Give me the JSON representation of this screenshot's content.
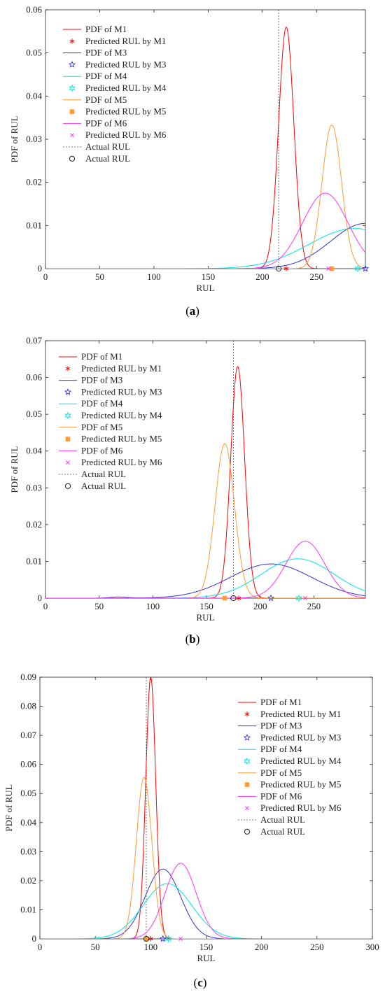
{
  "chart_data": [
    {
      "type": "line",
      "panel_label": "(a)",
      "xlabel": "RUL",
      "ylabel": "PDF of RUL",
      "xlim": [
        0,
        295
      ],
      "ylim": [
        0,
        0.06
      ],
      "xticks": [
        0,
        50,
        100,
        150,
        200,
        250
      ],
      "yticks": [
        0,
        0.01,
        0.02,
        0.03,
        0.04,
        0.05,
        0.06
      ],
      "legend_position": "top-left",
      "actual_rul": 215,
      "series": [
        {
          "name": "PDF of M1",
          "color": "#ff0000",
          "curve": [
            {
              "mu": 222,
              "sigma": 7,
              "amp": 0.056
            }
          ],
          "predicted_label": "Predicted RUL by M1",
          "predicted_marker": "asterisk",
          "predicted_rul": 222
        },
        {
          "name": "PDF of M3",
          "color": "#3333cc",
          "curve": [
            {
              "mu": 295,
              "sigma": 32,
              "amp": 0.0105
            }
          ],
          "predicted_label": "Predicted RUL by M3",
          "predicted_marker": "pentagram",
          "predicted_rul": 295
        },
        {
          "name": "PDF of M4",
          "color": "#00e5e5",
          "curve": [
            {
              "mu": 285,
              "sigma": 42,
              "amp": 0.0093
            }
          ],
          "predicted_label": "Predicted RUL by M4",
          "predicted_marker": "hexagram",
          "predicted_rul": 288
        },
        {
          "name": "PDF of M5",
          "color": "#ff9933",
          "curve": [
            {
              "mu": 264,
              "sigma": 9,
              "amp": 0.0333
            }
          ],
          "predicted_label": "Predicted RUL by M5",
          "predicted_marker": "square",
          "predicted_rul": 264
        },
        {
          "name": "PDF of M6",
          "color": "#ff33ff",
          "curve": [
            {
              "mu": 258,
              "sigma": 21,
              "amp": 0.0175
            }
          ],
          "predicted_label": "Predicted RUL by M6",
          "predicted_marker": "x",
          "predicted_rul": 261
        }
      ],
      "actual_line_label": "Actual RUL",
      "actual_marker_label": "Actual RUL"
    },
    {
      "type": "line",
      "panel_label": "(b)",
      "xlabel": "RUL",
      "ylabel": "PDF of RUL",
      "xlim": [
        0,
        298
      ],
      "ylim": [
        0,
        0.07
      ],
      "xticks": [
        0,
        50,
        100,
        150,
        200,
        250
      ],
      "yticks": [
        0,
        0.01,
        0.02,
        0.03,
        0.04,
        0.05,
        0.06,
        0.07
      ],
      "legend_position": "top-left",
      "actual_rul": 175,
      "series": [
        {
          "name": "PDF of M1",
          "color": "#ff0000",
          "curve": [
            {
              "mu": 179,
              "sigma": 6.5,
              "amp": 0.063
            }
          ],
          "predicted_label": "Predicted RUL by M1",
          "predicted_marker": "asterisk",
          "predicted_rul": 180
        },
        {
          "name": "PDF of M3",
          "color": "#3333cc",
          "curve": [
            {
              "mu": 210,
              "sigma": 38,
              "amp": 0.0093
            },
            {
              "mu": 68,
              "sigma": 8,
              "amp": 0.0003
            }
          ],
          "predicted_label": "Predicted RUL by M3",
          "predicted_marker": "pentagram",
          "predicted_rul": 210
        },
        {
          "name": "PDF of M4",
          "color": "#00e5e5",
          "curve": [
            {
              "mu": 235,
              "sigma": 34,
              "amp": 0.0107
            }
          ],
          "predicted_label": "Predicted RUL by M4",
          "predicted_marker": "hexagram",
          "predicted_rul": 236
        },
        {
          "name": "PDF of M5",
          "color": "#ff9933",
          "curve": [
            {
              "mu": 167,
              "sigma": 9,
              "amp": 0.042
            }
          ],
          "predicted_label": "Predicted RUL by M5",
          "predicted_marker": "square",
          "predicted_rul": 167
        },
        {
          "name": "PDF of M6",
          "color": "#ff33ff",
          "curve": [
            {
              "mu": 242,
              "sigma": 18,
              "amp": 0.0155
            }
          ],
          "predicted_label": "Predicted RUL by M6",
          "predicted_marker": "x",
          "predicted_rul": 242
        }
      ],
      "actual_line_label": "Actual RUL",
      "actual_marker_label": "Actual RUL"
    },
    {
      "type": "line",
      "panel_label": "(c)",
      "xlabel": "RUL",
      "ylabel": "PDF of RUL",
      "xlim": [
        0,
        300
      ],
      "ylim": [
        0,
        0.09
      ],
      "xticks": [
        0,
        50,
        100,
        150,
        200,
        250,
        300
      ],
      "yticks": [
        0,
        0.01,
        0.02,
        0.03,
        0.04,
        0.05,
        0.06,
        0.07,
        0.08,
        0.09
      ],
      "legend_position": "top-right",
      "actual_rul": 96,
      "series": [
        {
          "name": "PDF of M1",
          "color": "#ff0000",
          "curve": [
            {
              "mu": 100,
              "sigma": 4.5,
              "amp": 0.09
            }
          ],
          "predicted_label": "Predicted RUL by M1",
          "predicted_marker": "asterisk",
          "predicted_rul": 100
        },
        {
          "name": "PDF of M3",
          "color": "#3333cc",
          "curve": [
            {
              "mu": 111,
              "sigma": 16,
              "amp": 0.024
            }
          ],
          "predicted_label": "Predicted RUL by M3",
          "predicted_marker": "pentagram",
          "predicted_rul": 111
        },
        {
          "name": "PDF of M4",
          "color": "#00e5e5",
          "curve": [
            {
              "mu": 115,
              "sigma": 22,
              "amp": 0.019
            }
          ],
          "predicted_label": "Predicted RUL by M4",
          "predicted_marker": "hexagram",
          "predicted_rul": 116
        },
        {
          "name": "PDF of M5",
          "color": "#ff9933",
          "curve": [
            {
              "mu": 94,
              "sigma": 7,
              "amp": 0.0555
            }
          ],
          "predicted_label": "Predicted RUL by M5",
          "predicted_marker": "square",
          "predicted_rul": 96
        },
        {
          "name": "PDF of M6",
          "color": "#ff33ff",
          "curve": [
            {
              "mu": 127,
              "sigma": 14,
              "amp": 0.026
            }
          ],
          "predicted_label": "Predicted RUL by M6",
          "predicted_marker": "x",
          "predicted_rul": 127
        }
      ],
      "actual_line_label": "Actual RUL",
      "actual_marker_label": "Actual RUL"
    }
  ]
}
